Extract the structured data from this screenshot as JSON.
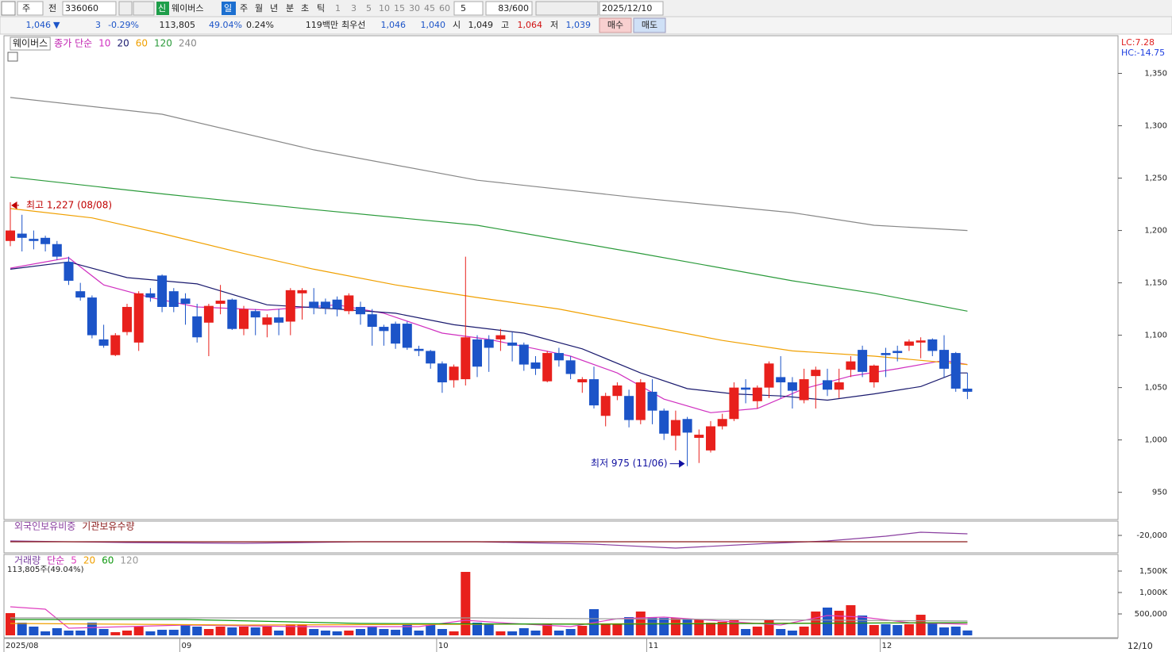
{
  "toolbar": {
    "row1": [
      "주",
      "전",
      "336060",
      "신",
      "웨이버스",
      "일",
      "주",
      "월",
      "년",
      "분",
      "초",
      "틱",
      "1",
      "3",
      "5",
      "10",
      "15",
      "30",
      "45",
      "60",
      "5",
      "83/600",
      "2025/12/10"
    ],
    "row2": [
      "1,046",
      "▼",
      "3",
      "-0.29%",
      "113,805",
      "49.04%",
      "0.24%",
      "119백만",
      "최우선",
      "1,046",
      "1,040",
      "시",
      "1,049",
      "고",
      "1,064",
      "저",
      "1,039",
      "매수",
      "매도"
    ]
  },
  "x_axis_end": "12/10",
  "chart_data": [
    {
      "type": "candlestick",
      "name": "웨이버스",
      "legend_label": "종가 단순",
      "lc_label": "LC:7.28",
      "hc_label": "HC:-14.75",
      "up_color": "#e8201c",
      "down_color": "#1c54c8",
      "categories": [
        "2025/08",
        null,
        null,
        null,
        null,
        null,
        null,
        null,
        null,
        null,
        null,
        null,
        null,
        null,
        null,
        "09",
        null,
        null,
        null,
        null,
        null,
        null,
        null,
        null,
        null,
        null,
        null,
        null,
        null,
        null,
        null,
        null,
        null,
        null,
        null,
        null,
        null,
        "10",
        null,
        null,
        null,
        null,
        null,
        null,
        null,
        null,
        null,
        null,
        null,
        null,
        null,
        null,
        null,
        null,
        null,
        "11",
        null,
        null,
        null,
        null,
        null,
        null,
        null,
        null,
        null,
        null,
        null,
        null,
        null,
        null,
        null,
        null,
        null,
        null,
        null,
        "12",
        null,
        null,
        null,
        null,
        null,
        null,
        null
      ],
      "open": [
        1190,
        1197,
        1192,
        1193,
        1187,
        1170,
        1142,
        1136,
        1096,
        1081,
        1103,
        1093,
        1140,
        1157,
        1142,
        1135,
        1118,
        1112,
        1130,
        1134,
        1106,
        1123,
        1110,
        1117,
        1113,
        1140,
        1132,
        1132,
        1134,
        1123,
        1127,
        1120,
        1108,
        1111,
        1111,
        1087,
        1085,
        1073,
        1057,
        1058,
        1096,
        1096,
        1096,
        1093,
        1091,
        1074,
        1056,
        1083,
        1076,
        1055,
        1058,
        1023,
        1042,
        1042,
        1019,
        1046,
        1028,
        1004,
        1020,
        1002,
        990,
        1013,
        1020,
        1050,
        1037,
        1050,
        1060,
        1055,
        1038,
        1061,
        1057,
        1048,
        1067,
        1086,
        1055,
        1083,
        1085,
        1090,
        1093,
        1096,
        1086,
        1083,
        1049
      ],
      "high": [
        1227,
        1215,
        1200,
        1195,
        1190,
        1175,
        1150,
        1138,
        1110,
        1102,
        1130,
        1142,
        1145,
        1158,
        1145,
        1140,
        1130,
        1130,
        1148,
        1135,
        1128,
        1125,
        1120,
        1125,
        1145,
        1145,
        1145,
        1135,
        1137,
        1140,
        1132,
        1125,
        1110,
        1113,
        1113,
        1090,
        1086,
        1075,
        1072,
        1175,
        1100,
        1100,
        1106,
        1103,
        1093,
        1080,
        1085,
        1088,
        1080,
        1060,
        1070,
        1045,
        1055,
        1048,
        1058,
        1058,
        1030,
        1028,
        1022,
        1010,
        1018,
        1025,
        1055,
        1058,
        1052,
        1075,
        1080,
        1060,
        1068,
        1070,
        1068,
        1068,
        1080,
        1090,
        1072,
        1088,
        1090,
        1096,
        1098,
        1097,
        1100,
        1084,
        1064
      ],
      "low": [
        1185,
        1180,
        1182,
        1180,
        1172,
        1148,
        1133,
        1097,
        1088,
        1080,
        1100,
        1085,
        1132,
        1122,
        1122,
        1110,
        1093,
        1080,
        1120,
        1105,
        1100,
        1100,
        1098,
        1100,
        1100,
        1115,
        1120,
        1120,
        1118,
        1120,
        1110,
        1090,
        1090,
        1087,
        1086,
        1080,
        1068,
        1045,
        1050,
        1052,
        1060,
        1065,
        1085,
        1075,
        1066,
        1062,
        1055,
        1070,
        1058,
        1045,
        1030,
        1013,
        1038,
        1012,
        1015,
        1015,
        1000,
        990,
        975,
        978,
        988,
        1010,
        1018,
        1035,
        1030,
        1040,
        1040,
        1030,
        1035,
        1030,
        1042,
        1040,
        1060,
        1060,
        1050,
        1060,
        1075,
        1085,
        1078,
        1080,
        1060,
        1046,
        1039
      ],
      "close": [
        1200,
        1193,
        1190,
        1187,
        1175,
        1152,
        1136,
        1100,
        1090,
        1100,
        1127,
        1140,
        1136,
        1127,
        1127,
        1130,
        1098,
        1128,
        1133,
        1106,
        1125,
        1117,
        1117,
        1112,
        1143,
        1143,
        1126,
        1126,
        1125,
        1138,
        1120,
        1108,
        1104,
        1092,
        1088,
        1085,
        1073,
        1055,
        1070,
        1098,
        1070,
        1088,
        1100,
        1090,
        1072,
        1068,
        1083,
        1076,
        1063,
        1058,
        1033,
        1042,
        1052,
        1019,
        1055,
        1028,
        1006,
        1019,
        1007,
        1005,
        1013,
        1020,
        1050,
        1048,
        1050,
        1073,
        1055,
        1047,
        1058,
        1067,
        1048,
        1055,
        1075,
        1065,
        1071,
        1081,
        1083,
        1094,
        1095,
        1085,
        1068,
        1049,
        1046
      ],
      "series": [
        {
          "name": "10",
          "color": "#d030c0",
          "x": [
            0,
            5,
            8,
            12,
            16,
            22,
            28,
            32,
            37,
            41,
            45,
            48,
            52,
            56,
            60,
            64,
            68,
            72,
            76,
            80,
            82
          ],
          "values": [
            1164,
            1174,
            1148,
            1136,
            1127,
            1124,
            1129,
            1121,
            1102,
            1096,
            1087,
            1080,
            1064,
            1039,
            1026,
            1030,
            1049,
            1061,
            1068,
            1076,
            1072
          ]
        },
        {
          "name": "20",
          "color": "#1a1a6e",
          "x": [
            0,
            5,
            10,
            16,
            22,
            28,
            33,
            38,
            44,
            49,
            54,
            58,
            62,
            66,
            70,
            74,
            78,
            81,
            82
          ],
          "values": [
            1163,
            1170,
            1155,
            1149,
            1129,
            1125,
            1121,
            1110,
            1102,
            1087,
            1064,
            1049,
            1044,
            1042,
            1038,
            1044,
            1051,
            1064,
            1064
          ]
        },
        {
          "name": "60",
          "color": "#f0a000",
          "x": [
            0,
            7,
            13,
            20,
            26,
            33,
            40,
            47,
            54,
            61,
            67,
            74,
            82
          ],
          "values": [
            1221,
            1212,
            1197,
            1178,
            1163,
            1148,
            1136,
            1125,
            1110,
            1095,
            1085,
            1080,
            1072
          ]
        },
        {
          "name": "120",
          "color": "#2a9a3a",
          "x": [
            0,
            13,
            26,
            40,
            54,
            67,
            74,
            82
          ],
          "values": [
            1251,
            1235,
            1220,
            1205,
            1178,
            1152,
            1140,
            1123
          ]
        },
        {
          "name": "240",
          "color": "#888888",
          "x": [
            0,
            13,
            26,
            40,
            54,
            67,
            74,
            82
          ],
          "values": [
            1327,
            1311,
            1277,
            1248,
            1231,
            1217,
            1205,
            1200
          ]
        }
      ],
      "annotations": [
        {
          "text": "최고 1,227 (08/08)",
          "index": 0,
          "value": 1227,
          "color": "#c00000"
        },
        {
          "text": "최저 975 (11/06)",
          "index": 58,
          "value": 975,
          "color": "#1010a0"
        }
      ],
      "ylim": [
        924,
        1386
      ],
      "yticks": [
        {
          "value": 1350,
          "label": "1,350"
        },
        {
          "value": 1300,
          "label": "1,300"
        },
        {
          "value": 1250,
          "label": "1,250"
        },
        {
          "value": 1200,
          "label": "1,200"
        },
        {
          "value": 1150,
          "label": "1,150"
        },
        {
          "value": 1100,
          "label": "1,100"
        },
        {
          "value": 1050,
          "label": "1,050"
        },
        {
          "value": 1000,
          "label": "1,000"
        },
        950
      ]
    },
    {
      "type": "line",
      "series": [
        {
          "name": "외국인보유비중",
          "color": "#8a3fa0",
          "x": [
            0,
            10,
            20,
            30,
            40,
            50,
            57,
            65,
            70,
            75,
            78,
            82
          ],
          "values": [
            -27000,
            -29000,
            -30000,
            -28000,
            -28000,
            -31000,
            -36000,
            -30000,
            -27000,
            -21000,
            -16000,
            -18000
          ]
        },
        {
          "name": "기관보유수량",
          "color": "#8b1a1a",
          "x": [
            0,
            82
          ],
          "values": [
            -28000,
            -28000
          ]
        }
      ],
      "ylim": [
        -42000,
        -2000
      ],
      "yticks": [
        {
          "value": -20000,
          "label": "-20,000"
        }
      ]
    },
    {
      "type": "bar",
      "name": "거래량",
      "legend_label": "단순",
      "value_label": "113,805주(49.04%)",
      "up_color": "#e8201c",
      "down_color": "#1c54c8",
      "values": [
        519000,
        296000,
        204000,
        93000,
        167000,
        111000,
        111000,
        296000,
        148000,
        74000,
        111000,
        204000,
        93000,
        130000,
        130000,
        241000,
        204000,
        148000,
        204000,
        185000,
        204000,
        185000,
        204000,
        111000,
        259000,
        259000,
        148000,
        111000,
        93000,
        111000,
        148000,
        204000,
        148000,
        130000,
        259000,
        111000,
        241000,
        148000,
        93000,
        1481000,
        296000,
        278000,
        93000,
        93000,
        167000,
        111000,
        278000,
        111000,
        148000,
        222000,
        611000,
        259000,
        259000,
        426000,
        556000,
        426000,
        407000,
        407000,
        389000,
        370000,
        296000,
        315000,
        352000,
        148000,
        204000,
        352000,
        148000,
        111000,
        204000,
        556000,
        648000,
        574000,
        704000,
        463000,
        241000,
        259000,
        241000,
        259000,
        481000,
        296000,
        185000,
        204000,
        113805
      ],
      "series": [
        {
          "name": "5",
          "color": "#e040c0",
          "x": [
            0,
            3,
            5,
            10,
            15,
            25,
            35,
            39,
            43,
            48,
            52,
            56,
            60,
            66,
            70,
            73,
            77,
            82
          ],
          "values": [
            667000,
            611000,
            167000,
            204000,
            241000,
            204000,
            204000,
            352000,
            278000,
            204000,
            389000,
            426000,
            352000,
            241000,
            463000,
            426000,
            296000,
            259000
          ]
        },
        {
          "name": "20",
          "color": "#f0a000",
          "x": [
            0,
            20,
            40,
            60,
            82
          ],
          "values": [
            278000,
            241000,
            259000,
            278000,
            296000
          ]
        },
        {
          "name": "60",
          "color": "#119911",
          "x": [
            0,
            15,
            30,
            50,
            82
          ],
          "values": [
            370000,
            370000,
            278000,
            259000,
            296000
          ]
        },
        {
          "name": "120",
          "color": "#999999",
          "x": [
            0,
            40,
            82
          ],
          "values": [
            407000,
            407000,
            333000
          ]
        }
      ],
      "ylim": [
        0,
        1870000
      ],
      "yticks": [
        {
          "value": 1500000,
          "label": "1,500K"
        },
        {
          "value": 1000000,
          "label": "1,000K"
        },
        {
          "value": 500000,
          "label": "500,000"
        }
      ]
    }
  ]
}
